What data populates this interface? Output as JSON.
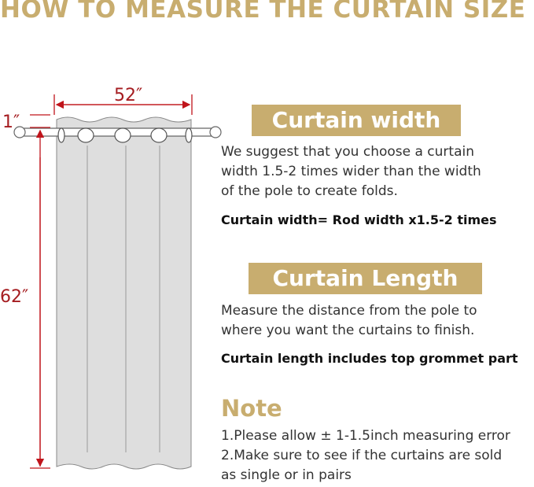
{
  "title": "HOW TO MEASURE THE CURTAIN SIZE",
  "dimensions": {
    "width": "52″",
    "height": "62″",
    "grommet": "1″"
  },
  "width_section": {
    "heading": "Curtain width",
    "lines": [
      "We suggest that you choose a curtain",
      "width 1.5-2 times wider than the width",
      "of the pole to create folds."
    ],
    "formula": "Curtain width= Rod width x1.5-2 times"
  },
  "length_section": {
    "heading": "Curtain Length",
    "lines": [
      "Measure the distance from the pole to",
      "where you want the curtains to finish."
    ],
    "formula": "Curtain length includes top grommet part"
  },
  "note": {
    "heading": "Note",
    "lines": [
      "1.Please allow ± 1-1.5inch measuring error",
      "2.Make sure to see if the curtains are sold",
      "as single or in pairs"
    ]
  },
  "colors": {
    "accent": "#c8ad6f",
    "dimension": "#a51c20",
    "curtain": "#dedede"
  }
}
